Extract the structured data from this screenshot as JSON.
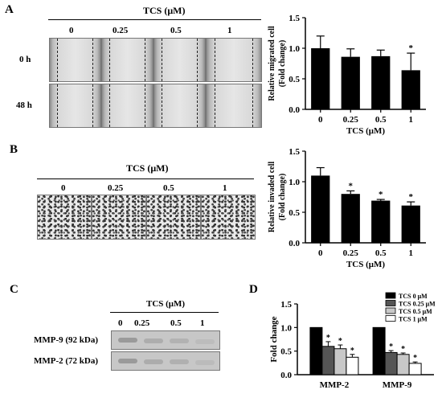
{
  "panelA": {
    "letter": "A",
    "header": "TCS (μM)",
    "concentrations": [
      "0",
      "0.25",
      "0.5",
      "1"
    ],
    "rows": [
      "0 h",
      "48 h"
    ]
  },
  "panelB": {
    "letter": "B",
    "header": "TCS (μM)",
    "concentrations": [
      "0",
      "0.25",
      "0.5",
      "1"
    ]
  },
  "panelC": {
    "letter": "C",
    "header": "TCS (μM)",
    "concentrations": [
      "0",
      "0.25",
      "0.5",
      "1"
    ],
    "bands": [
      "MMP-9 (92 kDa)",
      "MMP-2 (72 kDa)"
    ]
  },
  "panelD": {
    "letter": "D"
  },
  "colors": {
    "bar_black": "#000000",
    "bar_dark_gray": "#555555",
    "bar_light_gray": "#c8c8c8",
    "bar_white": "#ffffff"
  },
  "chart_data": [
    {
      "type": "bar",
      "panel": "A",
      "categories": [
        "0",
        "0.25",
        "0.5",
        "1"
      ],
      "values": [
        1.0,
        0.86,
        0.87,
        0.64
      ],
      "errors": [
        0.2,
        0.13,
        0.1,
        0.28
      ],
      "significance": [
        "",
        "",
        "",
        "*"
      ],
      "xlabel": "TCS (μM)",
      "ylabel": "Relative migrated cell (Fold change)",
      "ylim": [
        0,
        1.5
      ],
      "yticks": [
        "0.0",
        "0.5",
        "1.0",
        "1.5"
      ]
    },
    {
      "type": "bar",
      "panel": "B",
      "categories": [
        "0",
        "0.25",
        "0.5",
        "1"
      ],
      "values": [
        1.1,
        0.8,
        0.69,
        0.61
      ],
      "errors": [
        0.13,
        0.05,
        0.02,
        0.06
      ],
      "significance": [
        "",
        "*",
        "*",
        "*"
      ],
      "xlabel": "TCS (μM)",
      "ylabel": "Relative invaded cell (Fold change)",
      "ylim": [
        0,
        1.5
      ],
      "yticks": [
        "0.0",
        "0.5",
        "1.0",
        "1.5"
      ]
    },
    {
      "type": "bar",
      "panel": "D",
      "categories": [
        "MMP-2",
        "MMP-9"
      ],
      "series": [
        {
          "name": "TCS 0 μM",
          "values": [
            1.0,
            1.0
          ],
          "errors": [
            0,
            0
          ],
          "significance": [
            "",
            ""
          ]
        },
        {
          "name": "TCS 0.25 μM",
          "values": [
            0.6,
            0.47
          ],
          "errors": [
            0.1,
            0.04
          ],
          "significance": [
            "*",
            "*"
          ]
        },
        {
          "name": "TCS 0.5 μM",
          "values": [
            0.55,
            0.43
          ],
          "errors": [
            0.08,
            0.03
          ],
          "significance": [
            "*",
            "*"
          ]
        },
        {
          "name": "TCS 1 μM",
          "values": [
            0.37,
            0.24
          ],
          "errors": [
            0.06,
            0.03
          ],
          "significance": [
            "*",
            "*"
          ]
        }
      ],
      "ylabel": "Fold change",
      "ylim": [
        0,
        1.5
      ],
      "yticks": [
        "0.0",
        "0.5",
        "1.0",
        "1.5"
      ],
      "legend": "top-right"
    }
  ]
}
